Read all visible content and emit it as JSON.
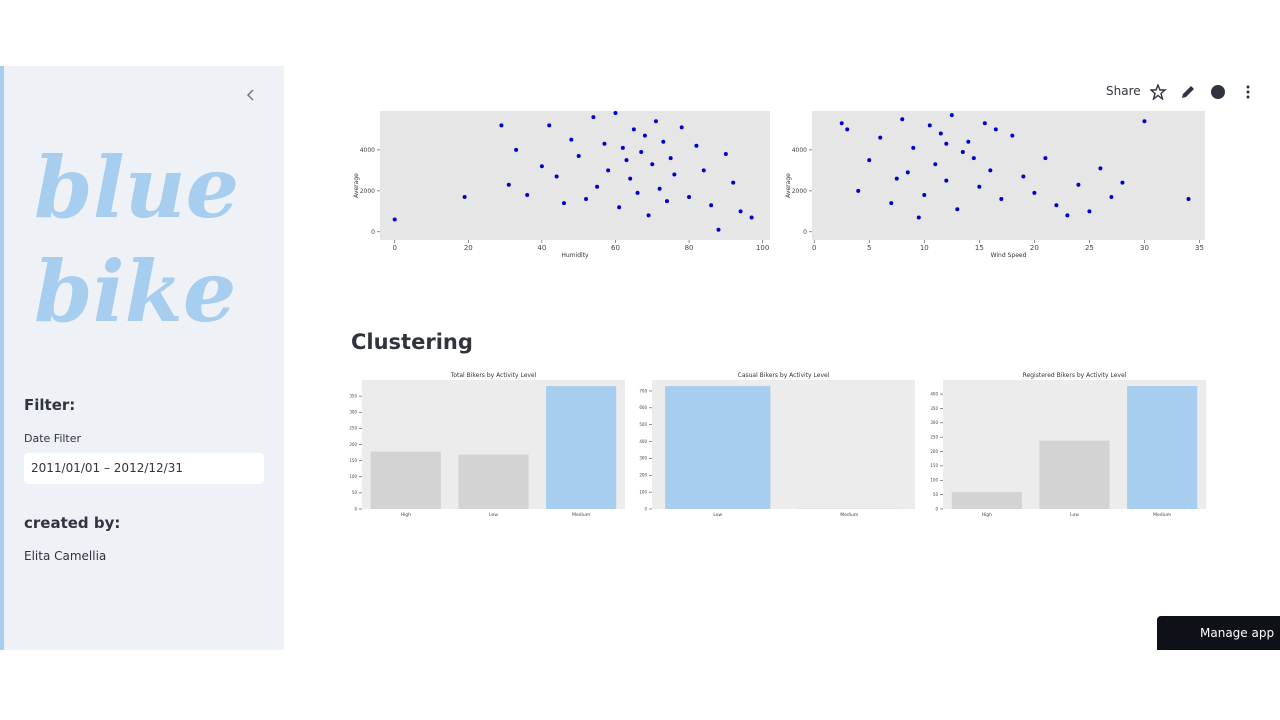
{
  "sidebar": {
    "logo_text": "blue bike",
    "filter_heading": "Filter:",
    "date_label": "Date Filter",
    "date_value": "2011/01/01 – 2012/12/31",
    "created_heading": "created by:",
    "author": "Elita Camellia"
  },
  "toolbar": {
    "share": "Share"
  },
  "section_heading": "Clustering",
  "manage_app": "Manage app",
  "chart_data": [
    {
      "type": "scatter",
      "xlabel": "Humidity",
      "ylabel": "Average",
      "color": "#0000cc",
      "x": [
        0,
        19,
        31,
        33,
        36,
        40,
        42,
        44,
        46,
        48,
        50,
        52,
        54,
        55,
        57,
        58,
        60,
        61,
        62,
        63,
        64,
        65,
        66,
        67,
        68,
        69,
        70,
        71,
        72,
        73,
        74,
        75,
        76,
        78,
        80,
        82,
        84,
        86,
        88,
        90,
        92,
        94,
        97,
        29
      ],
      "y": [
        600,
        1700,
        2300,
        4000,
        1800,
        3200,
        5200,
        2700,
        1400,
        4500,
        3700,
        1600,
        5600,
        2200,
        4300,
        3000,
        5800,
        1200,
        4100,
        3500,
        2600,
        5000,
        1900,
        3900,
        4700,
        800,
        3300,
        5400,
        2100,
        4400,
        1500,
        3600,
        2800,
        5100,
        1700,
        4200,
        3000,
        1300,
        100,
        3800,
        2400,
        1000,
        700,
        5200
      ],
      "xlim": [
        -4,
        102
      ],
      "ylim": [
        -400,
        5900
      ],
      "xticks": [
        0,
        20,
        40,
        60,
        80,
        100
      ],
      "yticks": [
        0,
        2000,
        4000
      ]
    },
    {
      "type": "scatter",
      "xlabel": "Wind Speed",
      "ylabel": "Average",
      "color": "#0000cc",
      "x": [
        3,
        4,
        5,
        6,
        7,
        8,
        8.5,
        9,
        10,
        10.5,
        11,
        11.5,
        12,
        12.5,
        13,
        13.5,
        14,
        15,
        15.5,
        16,
        17,
        18,
        19,
        20,
        21,
        22,
        23,
        24,
        25,
        26,
        27,
        28,
        30,
        34,
        2.5,
        9.5,
        12,
        14.5,
        16.5,
        7.5
      ],
      "y": [
        5000,
        2000,
        3500,
        4600,
        1400,
        5500,
        2900,
        4100,
        1800,
        5200,
        3300,
        4800,
        2500,
        5700,
        1100,
        3900,
        4400,
        2200,
        5300,
        3000,
        1600,
        4700,
        2700,
        1900,
        3600,
        1300,
        800,
        2300,
        1000,
        3100,
        1700,
        2400,
        5400,
        1600,
        5300,
        700,
        4300,
        3600,
        5000,
        2600
      ],
      "xlim": [
        -0.2,
        35.5
      ],
      "ylim": [
        -400,
        5900
      ],
      "xticks": [
        0,
        5,
        10,
        15,
        20,
        25,
        30,
        35
      ],
      "yticks": [
        0,
        2000,
        4000
      ]
    },
    {
      "type": "bar",
      "title": "Total Bikers by Activity Level",
      "categories": [
        "High",
        "Low",
        "Medium"
      ],
      "values": [
        178,
        169,
        381
      ],
      "colors": [
        "#d3d3d3",
        "#d3d3d3",
        "#a7cdef"
      ],
      "ylim": [
        0,
        400
      ],
      "yticks": [
        0,
        50,
        100,
        150,
        200,
        250,
        300,
        350
      ]
    },
    {
      "type": "bar",
      "title": "Casual Bikers by Activity Level",
      "categories": [
        "Low",
        "Medium"
      ],
      "values": [
        729,
        2
      ],
      "colors": [
        "#a7cdef",
        "#d3d3d3"
      ],
      "ylim": [
        0,
        765
      ],
      "yticks": [
        0,
        100,
        200,
        300,
        400,
        500,
        600,
        700
      ]
    },
    {
      "type": "bar",
      "title": "Registered Bikers by Activity Level",
      "categories": [
        "High",
        "Low",
        "Medium"
      ],
      "values": [
        59,
        238,
        428
      ],
      "colors": [
        "#d3d3d3",
        "#d3d3d3",
        "#a7cdef"
      ],
      "ylim": [
        0,
        449
      ],
      "yticks": [
        0,
        50,
        100,
        150,
        200,
        250,
        300,
        350,
        400
      ]
    }
  ]
}
